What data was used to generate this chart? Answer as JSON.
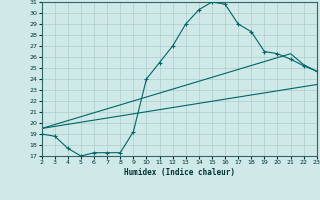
{
  "xlabel": "Humidex (Indice chaleur)",
  "bg_color": "#cfe8e8",
  "grid_color": "#b0cccc",
  "line_color": "#006666",
  "x_min": 2,
  "x_max": 23,
  "y_min": 17,
  "y_max": 31,
  "line1_x": [
    2,
    3,
    4,
    5,
    6,
    7,
    8,
    9,
    10,
    11,
    12,
    13,
    14,
    15,
    16,
    17,
    18,
    19,
    20,
    21,
    22,
    23
  ],
  "line1_y": [
    19.0,
    18.8,
    17.7,
    17.0,
    17.3,
    17.3,
    17.3,
    19.2,
    24.0,
    25.5,
    27.0,
    29.0,
    30.3,
    31.0,
    30.8,
    29.0,
    28.3,
    26.5,
    26.3,
    25.8,
    25.2,
    24.7
  ],
  "line2_x": [
    2,
    21,
    22,
    23
  ],
  "line2_y": [
    19.5,
    26.3,
    25.3,
    24.7
  ],
  "line3_x": [
    2,
    23
  ],
  "line3_y": [
    19.5,
    23.5
  ]
}
